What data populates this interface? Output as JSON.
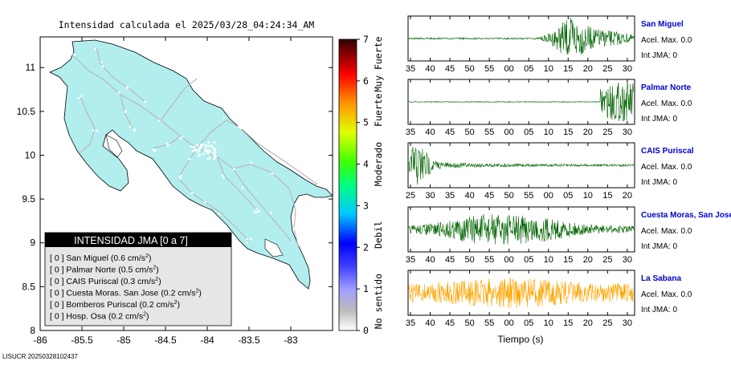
{
  "map": {
    "title": "Intensidad calculada el 2025/03/28_04:24:34_AM",
    "footer": "LISUCR 20250328102437",
    "x_ticks": [
      -86,
      -85.5,
      -85,
      -84.5,
      -84,
      -83.5,
      -83
    ],
    "x_tick_labels": [
      "-86",
      "-85.5",
      "-85",
      "-84.5",
      "-84",
      "-83.5",
      "-83"
    ],
    "y_ticks": [
      8,
      8.5,
      9,
      9.5,
      10,
      10.5,
      11
    ],
    "y_tick_labels": [
      "8",
      "8.5",
      "9",
      "9.5",
      "10",
      "10.5",
      "11"
    ],
    "xlim": [
      -86,
      -82.5
    ],
    "ylim": [
      8,
      11.35
    ],
    "land_color": "#b2eeee",
    "road_color": "#b8b8b8"
  },
  "colorbar": {
    "min": 0,
    "max": 7,
    "tick_labels": [
      "0",
      "1",
      "2",
      "3",
      "4",
      "5",
      "6",
      "7"
    ],
    "category_labels": [
      "No sentido",
      "Debil",
      "Moderado",
      "Fuerte",
      "Muy Fuerte"
    ]
  },
  "legend": {
    "title": "INTENSIDAD JMA [0 a 7]",
    "items": [
      {
        "intensity": "[ 0 ]",
        "station": "San Miguel",
        "value": "(0.6 cm/s",
        "sup": "2",
        "close": ")"
      },
      {
        "intensity": "[ 0 ]",
        "station": "Palmar Norte",
        "value": "(0.5 cm/s",
        "sup": "2",
        "close": ")"
      },
      {
        "intensity": "[ 0 ]",
        "station": "CAIS Puriscal",
        "value": "(0.3 cm/s",
        "sup": "2",
        "close": ")"
      },
      {
        "intensity": "[ 0 ]",
        "station": "Cuesta Moras. San Jose",
        "value": "(0.2 cm/s",
        "sup": "2",
        "close": ")"
      },
      {
        "intensity": "[ 0 ]",
        "station": "Bomberos Puriscal",
        "value": "(0.2 cm/s",
        "sup": "2",
        "close": ")"
      },
      {
        "intensity": "[ 0 ]",
        "station": "Hosp. Osa",
        "value": "(0.2 cm/s",
        "sup": "2",
        "close": ")"
      }
    ]
  },
  "seismograms": {
    "xlabel": "Tiempo (s)",
    "panels": [
      {
        "station": "San Miguel",
        "acel": "Acel. Max. 0.0",
        "int": "Int JMA: 0",
        "color": "#006400",
        "ticks": [
          "35",
          "40",
          "45",
          "50",
          "55",
          "00",
          "05",
          "10",
          "15",
          "20",
          "25",
          "30"
        ],
        "start": 35
      },
      {
        "station": "Palmar Norte",
        "acel": "Acel. Max. 0.0",
        "int": "Int JMA: 0",
        "color": "#006400",
        "ticks": [
          "35",
          "40",
          "45",
          "50",
          "55",
          "00",
          "05",
          "10",
          "15",
          "20",
          "25",
          "30"
        ],
        "start": 35
      },
      {
        "station": "CAIS Puriscal",
        "acel": "Acel. Max. 0.0",
        "int": "Int JMA: 0",
        "color": "#006400",
        "ticks": [
          "25",
          "30",
          "35",
          "40",
          "45",
          "50",
          "55",
          "00",
          "05",
          "10",
          "15",
          "20"
        ],
        "start": 25
      },
      {
        "station": "Cuesta Moras, San Jose",
        "acel": "Acel. Max. 0.0",
        "int": "Int JMA: 0",
        "color": "#006400",
        "ticks": [
          "35",
          "40",
          "45",
          "50",
          "55",
          "00",
          "05",
          "10",
          "15",
          "20",
          "25",
          "30"
        ],
        "start": 35
      },
      {
        "station": "La Sabana",
        "acel": "Acel. Max. 0.0",
        "int": "Int JMA: 0",
        "color": "#ffa500",
        "ticks": [
          "35",
          "40",
          "45",
          "50",
          "55",
          "00",
          "05",
          "10",
          "15",
          "20",
          "25",
          "30"
        ],
        "start": 35
      }
    ]
  }
}
